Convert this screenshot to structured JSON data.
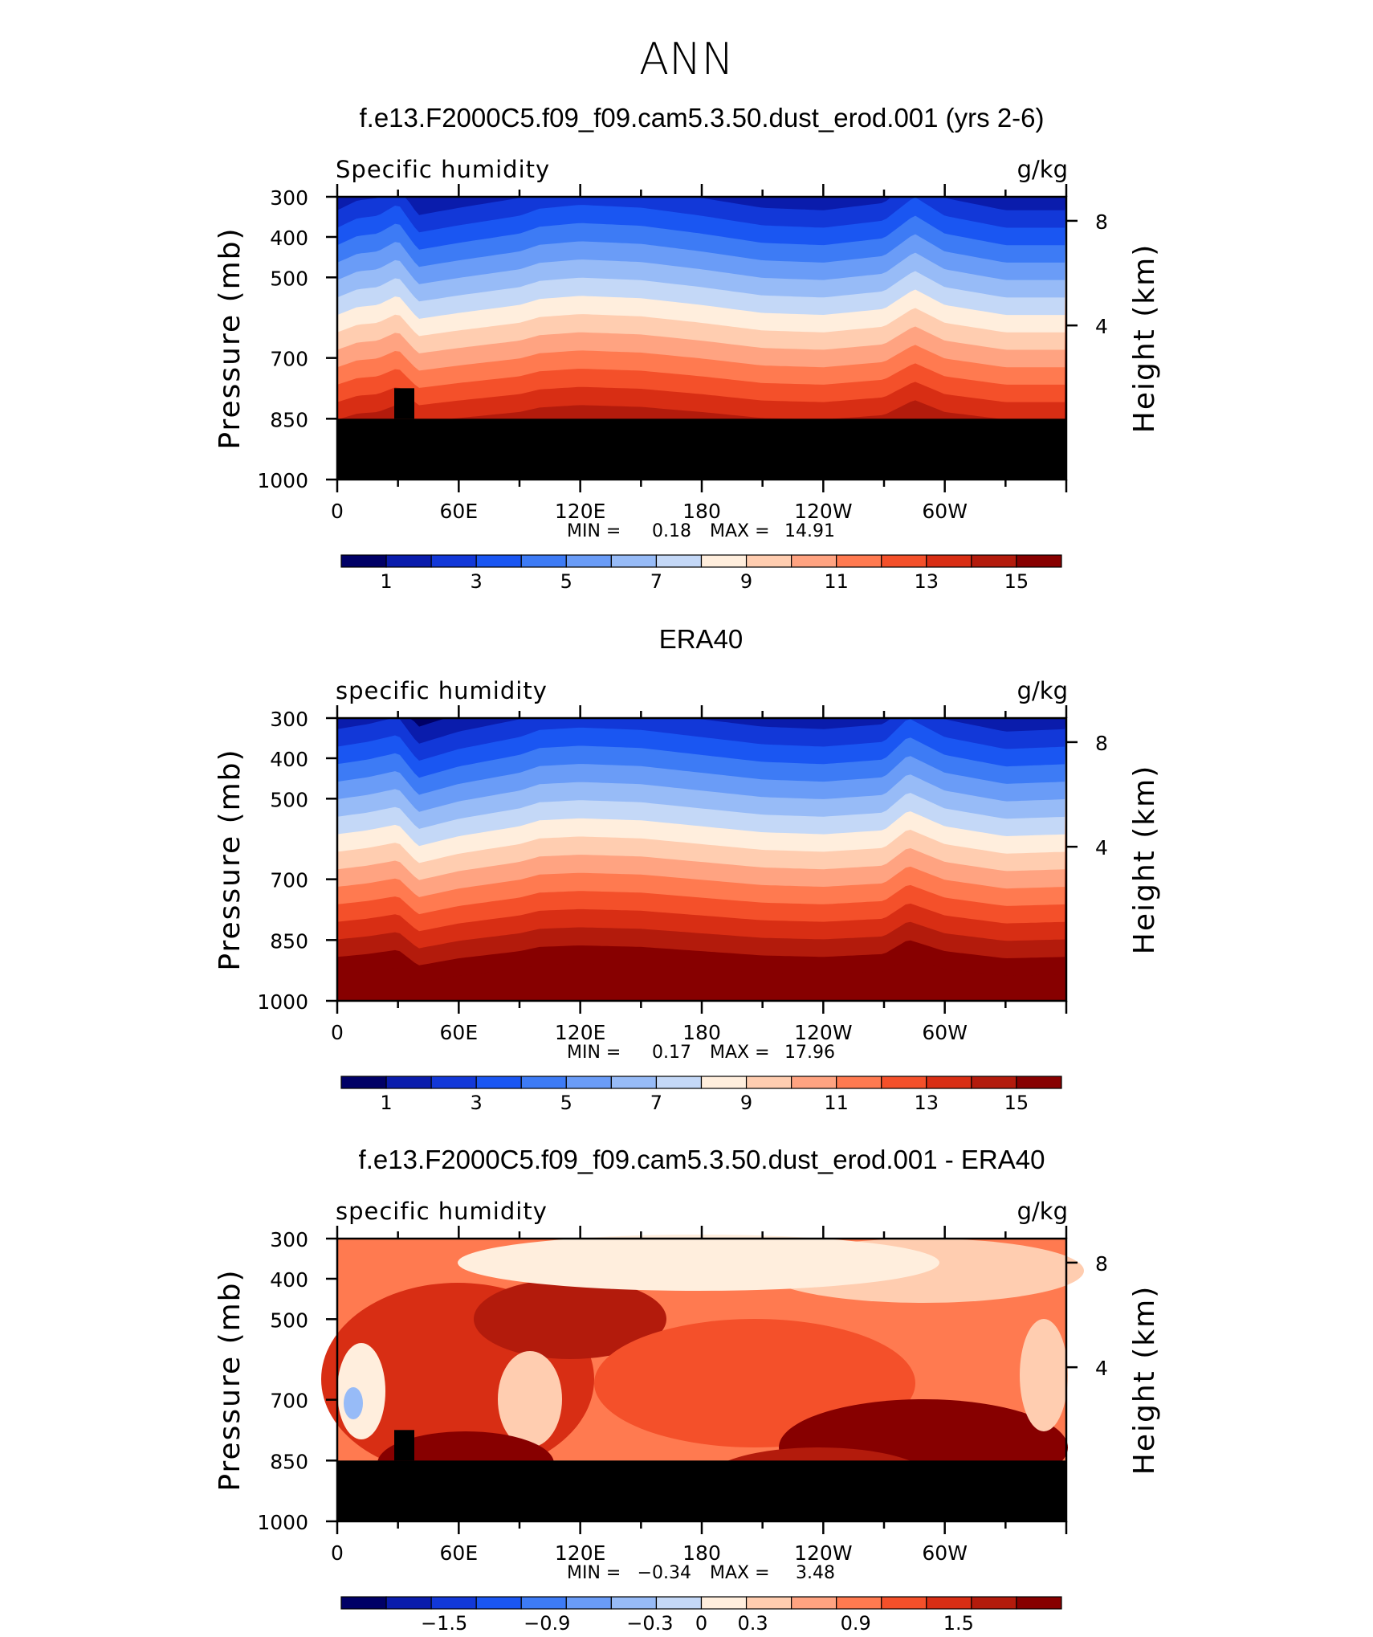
{
  "figure_title": "ANN",
  "chart_data": [
    {
      "type": "contour",
      "title": "f.e13.F2000C5.f09_f09.cam5.3.50.dust_erod.001 (yrs 2-6)",
      "left_label": "Specific humidity",
      "right_label": "g/kg",
      "ylabel": "Pressure (mb)",
      "ylabel_right": "Height (km)",
      "yticks": [
        "300",
        "400",
        "500",
        "700",
        "850",
        "1000"
      ],
      "yticks_right": [
        "8",
        "4"
      ],
      "xticks": [
        "0",
        "60E",
        "120E",
        "180",
        "120W",
        "60W"
      ],
      "stats_min_label": "MIN =",
      "stats_min": "0.18",
      "stats_max_label": "MAX =",
      "stats_max": "14.91",
      "colorbar_ticks": [
        "1",
        "3",
        "5",
        "7",
        "9",
        "11",
        "13",
        "15"
      ],
      "colorbar_range": [
        0,
        16
      ],
      "ylim_mb": [
        1000,
        300
      ],
      "mask_below_mb": 850,
      "profile": [
        {
          "lon": 0,
          "v": 0.3
        },
        {
          "lon": 10,
          "v": 0.5
        },
        {
          "lon": 20,
          "v": 0.55
        },
        {
          "lon": 30,
          "v": 0.8
        },
        {
          "lon": 40,
          "v": 0.2
        },
        {
          "lon": 60,
          "v": 0.35
        },
        {
          "lon": 90,
          "v": 0.55
        },
        {
          "lon": 100,
          "v": 0.7
        },
        {
          "lon": 120,
          "v": 0.78
        },
        {
          "lon": 150,
          "v": 0.72
        },
        {
          "lon": 180,
          "v": 0.55
        },
        {
          "lon": 210,
          "v": 0.35
        },
        {
          "lon": 240,
          "v": 0.3
        },
        {
          "lon": 270,
          "v": 0.45
        },
        {
          "lon": 285,
          "v": 0.95
        },
        {
          "lon": 300,
          "v": 0.55
        },
        {
          "lon": 330,
          "v": 0.3
        },
        {
          "lon": 360,
          "v": 0.3
        }
      ]
    },
    {
      "type": "contour",
      "title": "ERA40",
      "left_label": "specific humidity",
      "right_label": "g/kg",
      "ylabel": "Pressure (mb)",
      "ylabel_right": "Height (km)",
      "yticks": [
        "300",
        "400",
        "500",
        "700",
        "850",
        "1000"
      ],
      "yticks_right": [
        "8",
        "4"
      ],
      "xticks": [
        "0",
        "60E",
        "120E",
        "180",
        "120W",
        "60W"
      ],
      "stats_min_label": "MIN =",
      "stats_min": "0.17",
      "stats_max_label": "MAX =",
      "stats_max": "17.96",
      "colorbar_ticks": [
        "1",
        "3",
        "5",
        "7",
        "9",
        "11",
        "13",
        "15"
      ],
      "colorbar_range": [
        0,
        16
      ],
      "ylim_mb": [
        1000,
        300
      ],
      "mask_below_mb": null,
      "profile": [
        {
          "lon": 0,
          "v": 0.35
        },
        {
          "lon": 15,
          "v": 0.45
        },
        {
          "lon": 30,
          "v": 0.6
        },
        {
          "lon": 40,
          "v": 0.05
        },
        {
          "lon": 60,
          "v": 0.3
        },
        {
          "lon": 90,
          "v": 0.55
        },
        {
          "lon": 100,
          "v": 0.7
        },
        {
          "lon": 120,
          "v": 0.75
        },
        {
          "lon": 150,
          "v": 0.7
        },
        {
          "lon": 180,
          "v": 0.55
        },
        {
          "lon": 210,
          "v": 0.4
        },
        {
          "lon": 240,
          "v": 0.35
        },
        {
          "lon": 270,
          "v": 0.45
        },
        {
          "lon": 282,
          "v": 0.95
        },
        {
          "lon": 300,
          "v": 0.55
        },
        {
          "lon": 330,
          "v": 0.3
        },
        {
          "lon": 360,
          "v": 0.35
        }
      ]
    },
    {
      "type": "contour",
      "title": "f.e13.F2000C5.f09_f09.cam5.3.50.dust_erod.001 - ERA40",
      "left_label": "specific humidity",
      "right_label": "g/kg",
      "ylabel": "Pressure (mb)",
      "ylabel_right": "Height (km)",
      "yticks": [
        "300",
        "400",
        "500",
        "700",
        "850",
        "1000"
      ],
      "yticks_right": [
        "8",
        "4"
      ],
      "xticks": [
        "0",
        "60E",
        "120E",
        "180",
        "120W",
        "60W"
      ],
      "stats_min_label": "MIN =",
      "stats_min": "−0.34",
      "stats_max_label": "MAX =",
      "stats_max": "3.48",
      "colorbar_ticks": [
        "−1.5",
        "−0.9",
        "−0.3",
        "0",
        "0.3",
        "0.9",
        "1.5"
      ],
      "colorbar_range": [
        -2.1,
        2.1
      ],
      "ylim_mb": [
        1000,
        300
      ],
      "mask_below_mb": 850,
      "profile": []
    }
  ],
  "colors": {
    "sequential": [
      "#000066",
      "#0a1cac",
      "#1238d8",
      "#1a56f2",
      "#3d7bf5",
      "#6a9cf7",
      "#97bbf7",
      "#c4d8f7",
      "#ffeedd",
      "#ffcdb0",
      "#ffa381",
      "#ff7a50",
      "#f4502a",
      "#d82e14",
      "#b31b0c",
      "#870000"
    ],
    "diff": [
      "#000066",
      "#0a1cac",
      "#1238d8",
      "#1a56f2",
      "#3d7bf5",
      "#6a9cf7",
      "#97bbf7",
      "#c4d8f7",
      "#ffeedd",
      "#ffcdb0",
      "#ffa381",
      "#ff7a50",
      "#f4502a",
      "#d82e14",
      "#b31b0c",
      "#870000"
    ],
    "terrain": "#000000"
  }
}
